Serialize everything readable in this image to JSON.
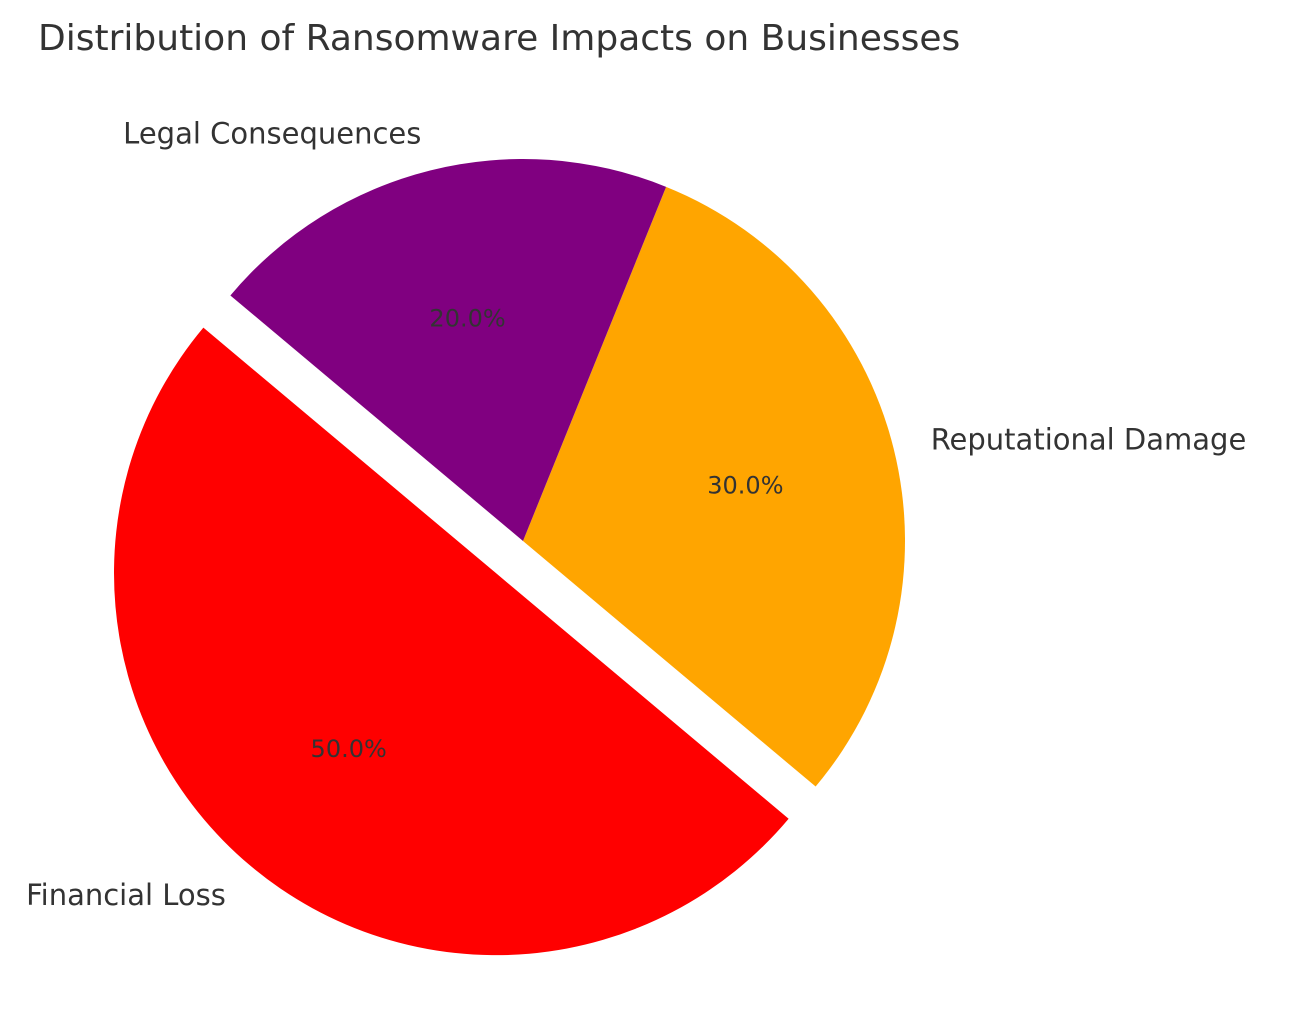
{
  "chart_data": {
    "type": "pie",
    "title": "Distribution of Ransomware Impacts on Businesses",
    "categories": [
      "Financial Loss",
      "Reputational Damage",
      "Legal Consequences"
    ],
    "values": [
      50,
      30,
      20
    ],
    "percent_labels": [
      "50.0%",
      "30.0%",
      "20.0%"
    ],
    "colors": [
      "#ff0000",
      "#ffa500",
      "#800080"
    ],
    "exploded": [
      "Financial Loss"
    ],
    "start_angle_deg": 140,
    "direction": "counterclockwise",
    "legend": "none"
  }
}
